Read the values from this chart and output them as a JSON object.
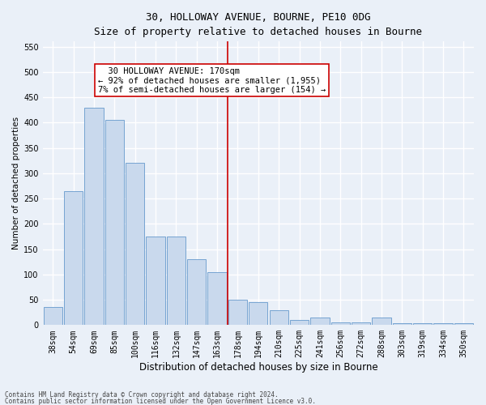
{
  "title_line1": "30, HOLLOWAY AVENUE, BOURNE, PE10 0DG",
  "title_line2": "Size of property relative to detached houses in Bourne",
  "xlabel": "Distribution of detached houses by size in Bourne",
  "ylabel": "Number of detached properties",
  "categories": [
    "38sqm",
    "54sqm",
    "69sqm",
    "85sqm",
    "100sqm",
    "116sqm",
    "132sqm",
    "147sqm",
    "163sqm",
    "178sqm",
    "194sqm",
    "210sqm",
    "225sqm",
    "241sqm",
    "256sqm",
    "272sqm",
    "288sqm",
    "303sqm",
    "319sqm",
    "334sqm",
    "350sqm"
  ],
  "values": [
    35,
    265,
    430,
    405,
    320,
    175,
    175,
    130,
    105,
    50,
    45,
    30,
    10,
    15,
    5,
    5,
    15,
    3,
    3,
    3,
    3
  ],
  "bar_color": "#c9d9ed",
  "bar_edge_color": "#6699cc",
  "vline_x_index": 8,
  "vline_color": "#cc0000",
  "ylim": [
    0,
    560
  ],
  "yticks": [
    0,
    50,
    100,
    150,
    200,
    250,
    300,
    350,
    400,
    450,
    500,
    550
  ],
  "annotation_text": "  30 HOLLOWAY AVENUE: 170sqm  \n← 92% of detached houses are smaller (1,955)\n7% of semi-detached houses are larger (154) →",
  "annotation_box_color": "#ffffff",
  "annotation_box_edge": "#cc0000",
  "footer_line1": "Contains HM Land Registry data © Crown copyright and database right 2024.",
  "footer_line2": "Contains public sector information licensed under the Open Government Licence v3.0.",
  "background_color": "#eaf0f8",
  "grid_color": "#ffffff",
  "title1_fontsize": 9,
  "title2_fontsize": 8.5,
  "ylabel_fontsize": 7.5,
  "xlabel_fontsize": 8.5,
  "tick_fontsize": 7,
  "annotation_fontsize": 7.5
}
